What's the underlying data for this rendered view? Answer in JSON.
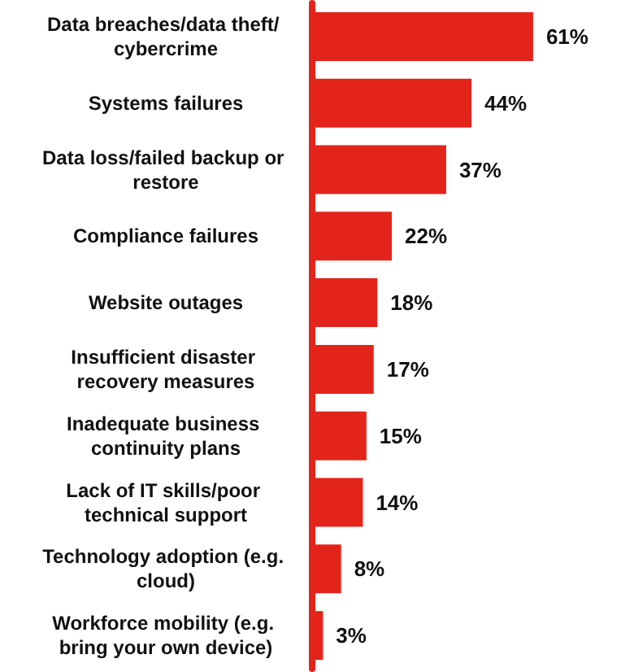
{
  "chart_data": {
    "type": "bar",
    "orientation": "horizontal",
    "categories": [
      "Data breaches/data theft/ cybercrime",
      "Systems failures",
      "Data loss/failed backup or restore",
      "Compliance failures",
      "Website outages",
      "Insufficient disaster recovery measures",
      "Inadequate business continuity plans",
      "Lack of IT skills/poor technical support",
      "Technology adoption (e.g. cloud)",
      "Workforce mobility (e.g. bring your own device)"
    ],
    "values": [
      61,
      44,
      37,
      22,
      18,
      17,
      15,
      14,
      8,
      3
    ],
    "value_labels": [
      "61%",
      "44%",
      "37%",
      "22%",
      "18%",
      "17%",
      "15%",
      "14%",
      "8%",
      "3%"
    ],
    "color": "#e3241b"
  }
}
